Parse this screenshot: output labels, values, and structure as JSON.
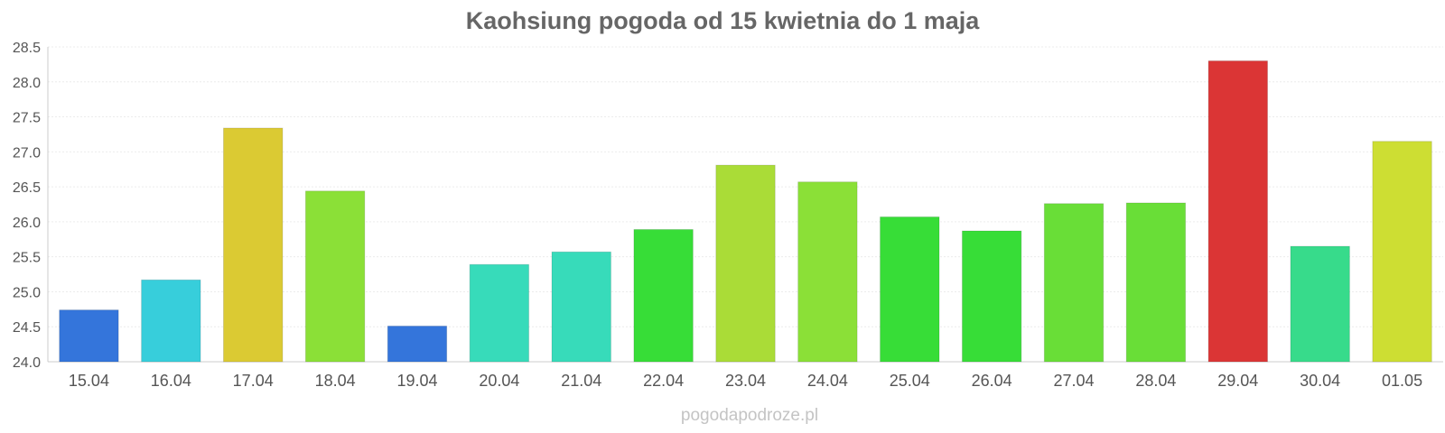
{
  "chart_data": {
    "type": "bar",
    "title": "Kaohsiung pogoda od 15 kwietnia do 1 maja",
    "categories": [
      "15.04",
      "16.04",
      "17.04",
      "18.04",
      "19.04",
      "20.04",
      "21.04",
      "22.04",
      "23.04",
      "24.04",
      "25.04",
      "26.04",
      "27.04",
      "28.04",
      "29.04",
      "30.04",
      "01.05"
    ],
    "values": [
      24.74,
      25.17,
      27.34,
      26.44,
      24.51,
      25.39,
      25.57,
      25.89,
      26.81,
      26.57,
      26.07,
      25.87,
      26.26,
      26.27,
      28.3,
      25.65,
      27.15
    ],
    "colors": [
      "#3475db",
      "#37cedb",
      "#dbca33",
      "#8be037",
      "#3475db",
      "#37dbba",
      "#37dbba",
      "#37dd37",
      "#aadc37",
      "#8be037",
      "#37dd37",
      "#37dd37",
      "#69de37",
      "#69de37",
      "#db3535",
      "#37db8b",
      "#cdde33"
    ],
    "xlabel": "",
    "ylabel": "",
    "ylim": [
      24.0,
      28.5
    ],
    "yticks": [
      "24.0",
      "24.5",
      "25.0",
      "25.5",
      "26.0",
      "26.5",
      "27.0",
      "27.5",
      "28.0",
      "28.5"
    ],
    "grid": true,
    "legend": "none"
  },
  "watermark": "pogodapodroze.pl"
}
